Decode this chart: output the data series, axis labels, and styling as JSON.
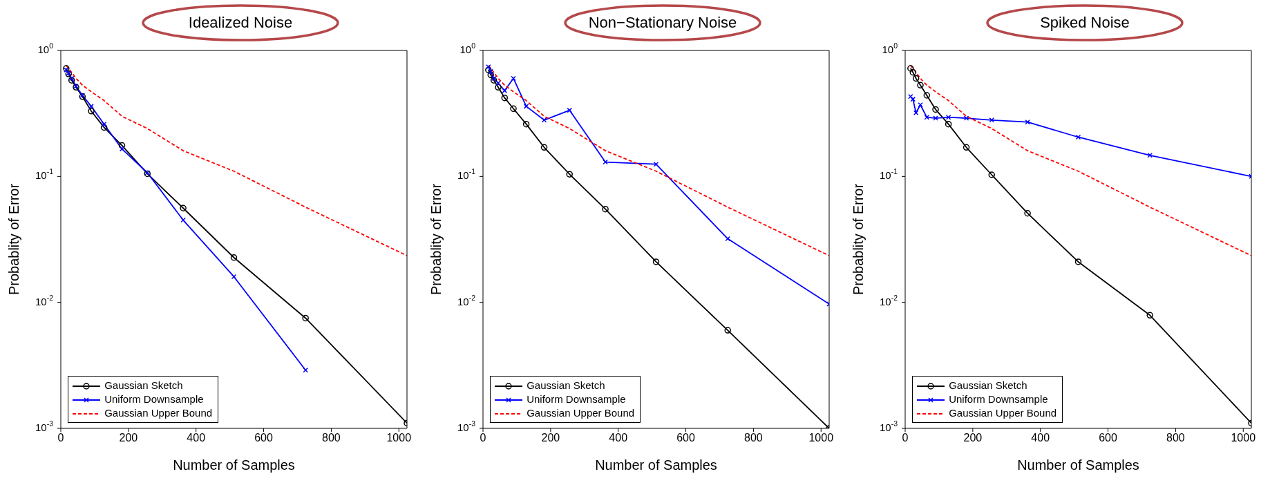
{
  "chart_data": [
    {
      "type": "line",
      "title": "Idealized Noise",
      "xlabel": "Number of Samples",
      "ylabel": "Probablity of Error",
      "log": "y",
      "grid": false,
      "legend": "bottom left",
      "xlim": [
        0,
        1024
      ],
      "xticks": [
        0,
        200,
        400,
        600,
        800,
        1000
      ],
      "ylim": [
        0.001,
        1
      ],
      "yticks": [
        {
          "value": 0.001,
          "label": "10$^{-3}$"
        },
        {
          "value": 0.01,
          "label": "10$^{-2}$"
        },
        {
          "value": 0.1,
          "label": "10$^{-1}$"
        },
        {
          "value": 1,
          "label": "10$^{0}$"
        }
      ],
      "x": [
        16,
        23,
        32,
        45,
        64,
        90,
        128,
        181,
        256,
        362,
        512,
        724,
        1024
      ],
      "series": [
        {
          "name": "Gaussian Sketch",
          "color": "#000000",
          "marker": "circle",
          "line_style": "solid",
          "values": [
            0.72,
            0.65,
            0.58,
            0.51,
            0.43,
            0.33,
            0.245,
            0.176,
            0.105,
            0.056,
            0.0227,
            0.0075,
            0.0011
          ]
        },
        {
          "name": "Uniform Downsample",
          "color": "#0000ff",
          "marker": "cross",
          "line_style": "solid",
          "values": [
            0.7,
            0.66,
            0.6,
            0.52,
            0.44,
            0.36,
            0.26,
            0.165,
            0.107,
            0.045,
            0.016,
            0.0029,
            null
          ]
        },
        {
          "name": "Gaussian Upper Bound",
          "color": "#ff0000",
          "marker": "none",
          "line_style": "dashed",
          "values": [
            0.76,
            0.72,
            0.67,
            0.6,
            0.53,
            0.47,
            0.4,
            0.3,
            0.24,
            0.16,
            0.11,
            0.057,
            0.0235
          ]
        }
      ]
    },
    {
      "type": "line",
      "title": "Non−Stationary Noise",
      "xlabel": "Number of Samples",
      "ylabel": "Probablity of Error",
      "log": "y",
      "grid": false,
      "legend": "bottom left",
      "xlim": [
        0,
        1024
      ],
      "xticks": [
        0,
        200,
        400,
        600,
        800,
        1000
      ],
      "ylim": [
        0.001,
        1
      ],
      "yticks": [
        {
          "value": 0.001,
          "label": "10$^{-3}$"
        },
        {
          "value": 0.01,
          "label": "10$^{-2}$"
        },
        {
          "value": 0.1,
          "label": "10$^{-1}$"
        },
        {
          "value": 1,
          "label": "10$^{0}$"
        }
      ],
      "x": [
        16,
        23,
        32,
        45,
        64,
        90,
        128,
        181,
        256,
        362,
        512,
        724,
        1024
      ],
      "series": [
        {
          "name": "Gaussian Sketch",
          "color": "#000000",
          "marker": "circle",
          "line_style": "solid",
          "values": [
            0.7,
            0.64,
            0.58,
            0.51,
            0.42,
            0.345,
            0.26,
            0.17,
            0.104,
            0.055,
            0.021,
            0.006,
            0.001
          ]
        },
        {
          "name": "Uniform Downsample",
          "color": "#0000ff",
          "marker": "cross",
          "line_style": "solid",
          "values": [
            0.74,
            0.68,
            0.6,
            0.55,
            0.48,
            0.6,
            0.36,
            0.28,
            0.335,
            0.13,
            0.125,
            0.032,
            0.0097
          ]
        },
        {
          "name": "Gaussian Upper Bound",
          "color": "#ff0000",
          "marker": "none",
          "line_style": "dashed",
          "values": [
            0.76,
            0.72,
            0.67,
            0.6,
            0.53,
            0.47,
            0.4,
            0.3,
            0.24,
            0.16,
            0.11,
            0.057,
            0.0235
          ]
        }
      ]
    },
    {
      "type": "line",
      "title": "Spiked Noise",
      "xlabel": "Number of Samples",
      "ylabel": "Probablity of Error",
      "log": "y",
      "grid": false,
      "legend": "bottom left",
      "xlim": [
        0,
        1024
      ],
      "xticks": [
        0,
        200,
        400,
        600,
        800,
        1000
      ],
      "ylim": [
        0.001,
        1
      ],
      "yticks": [
        {
          "value": 0.001,
          "label": "10$^{-3}$"
        },
        {
          "value": 0.01,
          "label": "10$^{-2}$"
        },
        {
          "value": 0.1,
          "label": "10$^{-1}$"
        },
        {
          "value": 1,
          "label": "10$^{0}$"
        }
      ],
      "x": [
        16,
        23,
        32,
        45,
        64,
        90,
        128,
        181,
        256,
        362,
        512,
        724,
        1024
      ],
      "series": [
        {
          "name": "Gaussian Sketch",
          "color": "#000000",
          "marker": "circle",
          "line_style": "solid",
          "values": [
            0.72,
            0.67,
            0.6,
            0.53,
            0.44,
            0.34,
            0.26,
            0.17,
            0.103,
            0.051,
            0.021,
            0.0079,
            0.0011
          ]
        },
        {
          "name": "Uniform Downsample",
          "color": "#0000ff",
          "marker": "cross",
          "line_style": "solid",
          "values": [
            0.43,
            0.41,
            0.32,
            0.37,
            0.295,
            0.29,
            0.295,
            0.29,
            0.28,
            0.27,
            0.205,
            0.147,
            0.1
          ]
        },
        {
          "name": "Gaussian Upper Bound",
          "color": "#ff0000",
          "marker": "none",
          "line_style": "dashed",
          "values": [
            0.76,
            0.72,
            0.67,
            0.6,
            0.53,
            0.47,
            0.4,
            0.3,
            0.24,
            0.16,
            0.11,
            0.057,
            0.0235
          ]
        }
      ]
    }
  ]
}
